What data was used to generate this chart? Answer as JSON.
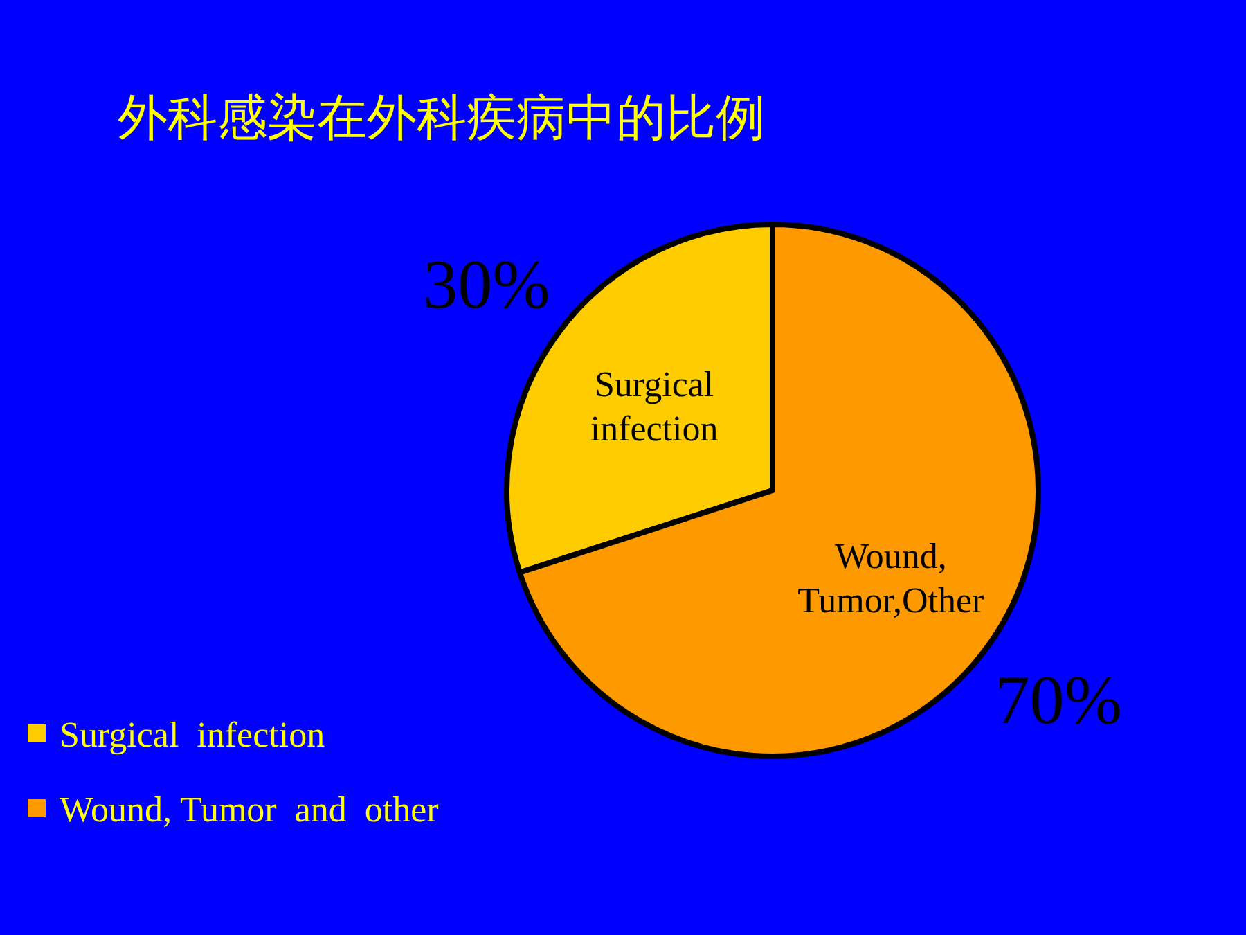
{
  "chart_data": {
    "type": "pie",
    "title": "外科感染在外科疾病中的比例",
    "categories": [
      "Surgical  infection",
      "Wound, Tumor  and  other"
    ],
    "values": [
      30,
      70
    ],
    "colors": [
      "#ffcc00",
      "#ff9900"
    ],
    "value_labels": [
      "30%",
      "70%"
    ],
    "legend": "bottom left",
    "annotations": [
      {
        "text": "Surgical infection",
        "x": "Surgical  infection"
      },
      {
        "text": "Wound, Tumor,Other",
        "x": "Wound, Tumor  and  other"
      }
    ]
  }
}
